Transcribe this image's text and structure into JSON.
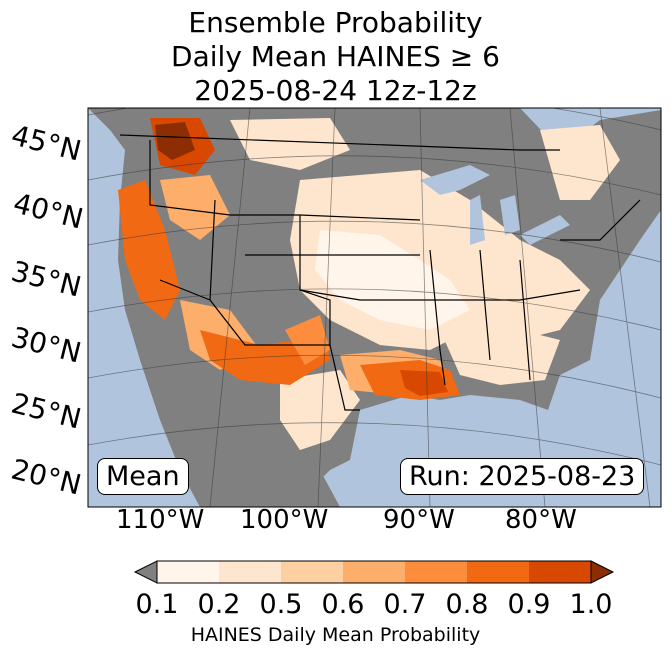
{
  "title": {
    "line1": "Ensemble Probability",
    "line2": "Daily Mean HAINES ≥ 6",
    "line3": "2025-08-24 12z-12z"
  },
  "map": {
    "lat_labels": [
      "45°N",
      "40°N",
      "35°N",
      "30°N",
      "25°N",
      "20°N"
    ],
    "lon_labels": [
      "110°W",
      "100°W",
      "90°W",
      "80°W"
    ],
    "mean_label": "Mean",
    "run_label": "Run: 2025-08-23",
    "ocean_color": "#b0c4de",
    "nodata_color": "#808080"
  },
  "colorbar": {
    "ticks": [
      "0.1",
      "0.2",
      "0.5",
      "0.6",
      "0.7",
      "0.8",
      "0.9",
      "1.0"
    ],
    "label": "HAINES Daily Mean Probability",
    "under_color": "#808080",
    "colors": [
      "#fff5eb",
      "#fee6ce",
      "#fdd0a2",
      "#fdae6b",
      "#fd8d3c",
      "#f16913",
      "#d94801",
      "#8c2d04"
    ]
  }
}
